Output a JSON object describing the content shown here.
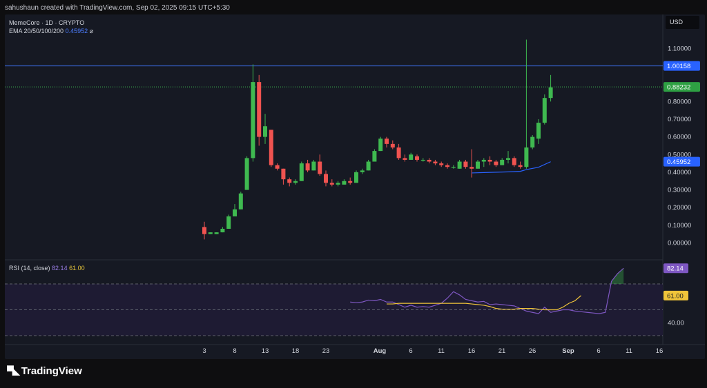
{
  "header": {
    "attribution": "sahushaun created with TradingView.com, Sep 02, 2025 09:15 UTC+5:30"
  },
  "legend": {
    "symbol": "MemeCore · 1D · CRYPTO",
    "ema_label": "EMA 20/50/100/200",
    "ema_value": "0.45952",
    "ema_suffix": "⌀",
    "rsi_label": "RSI (14, close)",
    "rsi_value1": "82.14",
    "rsi_value2": "61.00"
  },
  "currency": "USD",
  "brand": {
    "name": "TradingView",
    "logo_icon": "tradingview-logo-icon"
  },
  "colors": {
    "up": "#3fb950",
    "down": "#f05350",
    "ema": "#2962ff",
    "rsi": "#7e57c2",
    "rsi_ma": "#f0c43a",
    "resistance": "#3b6ee8",
    "current": "#3fb950"
  },
  "chart_data": [
    {
      "type": "candlestick",
      "title": "",
      "y_ticks": [
        "0.00000",
        "0.10000",
        "0.20000",
        "0.30000",
        "0.40000",
        "0.50000",
        "0.60000",
        "0.70000",
        "0.80000",
        "1.10000"
      ],
      "ylim": [
        -0.02,
        1.2
      ],
      "x_ticks": [
        "3",
        "8",
        "13",
        "18",
        "23",
        "Aug",
        "6",
        "11",
        "16",
        "21",
        "26",
        "Sep",
        "6",
        "11",
        "16"
      ],
      "price_labels": {
        "resistance": "1.00158",
        "current": "0.88232",
        "ema": "0.45952"
      },
      "candles": [
        {
          "o": 0.09,
          "h": 0.12,
          "l": 0.02,
          "c": 0.05
        },
        {
          "o": 0.05,
          "h": 0.06,
          "l": 0.05,
          "c": 0.06
        },
        {
          "o": 0.05,
          "h": 0.06,
          "l": 0.05,
          "c": 0.06
        },
        {
          "o": 0.06,
          "h": 0.09,
          "l": 0.06,
          "c": 0.08
        },
        {
          "o": 0.08,
          "h": 0.16,
          "l": 0.08,
          "c": 0.15
        },
        {
          "o": 0.15,
          "h": 0.22,
          "l": 0.15,
          "c": 0.19
        },
        {
          "o": 0.19,
          "h": 0.29,
          "l": 0.19,
          "c": 0.28
        },
        {
          "o": 0.3,
          "h": 0.49,
          "l": 0.3,
          "c": 0.48
        },
        {
          "o": 0.48,
          "h": 1.01,
          "l": 0.46,
          "c": 0.91
        },
        {
          "o": 0.91,
          "h": 0.95,
          "l": 0.55,
          "c": 0.6
        },
        {
          "o": 0.6,
          "h": 0.73,
          "l": 0.56,
          "c": 0.66
        },
        {
          "o": 0.64,
          "h": 0.64,
          "l": 0.43,
          "c": 0.44
        },
        {
          "o": 0.44,
          "h": 0.45,
          "l": 0.41,
          "c": 0.42
        },
        {
          "o": 0.42,
          "h": 0.42,
          "l": 0.33,
          "c": 0.36
        },
        {
          "o": 0.36,
          "h": 0.37,
          "l": 0.32,
          "c": 0.34
        },
        {
          "o": 0.34,
          "h": 0.36,
          "l": 0.33,
          "c": 0.35
        },
        {
          "o": 0.35,
          "h": 0.46,
          "l": 0.35,
          "c": 0.45
        },
        {
          "o": 0.45,
          "h": 0.47,
          "l": 0.4,
          "c": 0.41
        },
        {
          "o": 0.41,
          "h": 0.47,
          "l": 0.41,
          "c": 0.46
        },
        {
          "o": 0.46,
          "h": 0.5,
          "l": 0.38,
          "c": 0.39
        },
        {
          "o": 0.39,
          "h": 0.41,
          "l": 0.32,
          "c": 0.34
        },
        {
          "o": 0.34,
          "h": 0.36,
          "l": 0.32,
          "c": 0.33
        },
        {
          "o": 0.33,
          "h": 0.35,
          "l": 0.32,
          "c": 0.34
        },
        {
          "o": 0.33,
          "h": 0.36,
          "l": 0.33,
          "c": 0.35
        },
        {
          "o": 0.35,
          "h": 0.37,
          "l": 0.33,
          "c": 0.34
        },
        {
          "o": 0.34,
          "h": 0.41,
          "l": 0.34,
          "c": 0.4
        },
        {
          "o": 0.4,
          "h": 0.42,
          "l": 0.39,
          "c": 0.41
        },
        {
          "o": 0.41,
          "h": 0.47,
          "l": 0.41,
          "c": 0.46
        },
        {
          "o": 0.46,
          "h": 0.53,
          "l": 0.46,
          "c": 0.52
        },
        {
          "o": 0.52,
          "h": 0.6,
          "l": 0.52,
          "c": 0.59
        },
        {
          "o": 0.59,
          "h": 0.6,
          "l": 0.54,
          "c": 0.56
        },
        {
          "o": 0.56,
          "h": 0.58,
          "l": 0.53,
          "c": 0.54
        },
        {
          "o": 0.54,
          "h": 0.56,
          "l": 0.47,
          "c": 0.48
        },
        {
          "o": 0.48,
          "h": 0.5,
          "l": 0.46,
          "c": 0.47
        },
        {
          "o": 0.47,
          "h": 0.51,
          "l": 0.47,
          "c": 0.5
        },
        {
          "o": 0.49,
          "h": 0.5,
          "l": 0.46,
          "c": 0.47
        },
        {
          "o": 0.47,
          "h": 0.48,
          "l": 0.46,
          "c": 0.47
        },
        {
          "o": 0.47,
          "h": 0.48,
          "l": 0.45,
          "c": 0.46
        },
        {
          "o": 0.46,
          "h": 0.47,
          "l": 0.44,
          "c": 0.45
        },
        {
          "o": 0.45,
          "h": 0.46,
          "l": 0.43,
          "c": 0.44
        },
        {
          "o": 0.44,
          "h": 0.45,
          "l": 0.42,
          "c": 0.43
        },
        {
          "o": 0.43,
          "h": 0.44,
          "l": 0.42,
          "c": 0.43
        },
        {
          "o": 0.42,
          "h": 0.47,
          "l": 0.42,
          "c": 0.46
        },
        {
          "o": 0.46,
          "h": 0.47,
          "l": 0.42,
          "c": 0.43
        },
        {
          "o": 0.43,
          "h": 0.53,
          "l": 0.37,
          "c": 0.42
        },
        {
          "o": 0.42,
          "h": 0.47,
          "l": 0.42,
          "c": 0.46
        },
        {
          "o": 0.46,
          "h": 0.48,
          "l": 0.43,
          "c": 0.47
        },
        {
          "o": 0.47,
          "h": 0.49,
          "l": 0.44,
          "c": 0.46
        },
        {
          "o": 0.46,
          "h": 0.47,
          "l": 0.43,
          "c": 0.44
        },
        {
          "o": 0.44,
          "h": 0.48,
          "l": 0.44,
          "c": 0.47
        },
        {
          "o": 0.47,
          "h": 0.52,
          "l": 0.45,
          "c": 0.48
        },
        {
          "o": 0.48,
          "h": 0.49,
          "l": 0.43,
          "c": 0.44
        },
        {
          "o": 0.44,
          "h": 0.46,
          "l": 0.42,
          "c": 0.43
        },
        {
          "o": 0.43,
          "h": 1.15,
          "l": 0.42,
          "c": 0.54
        },
        {
          "o": 0.54,
          "h": 0.61,
          "l": 0.53,
          "c": 0.6
        },
        {
          "o": 0.59,
          "h": 0.7,
          "l": 0.56,
          "c": 0.68
        },
        {
          "o": 0.68,
          "h": 0.84,
          "l": 0.67,
          "c": 0.82
        },
        {
          "o": 0.82,
          "h": 0.95,
          "l": 0.8,
          "c": 0.88
        }
      ],
      "ema": [
        {
          "i": 44,
          "v": 0.396
        },
        {
          "i": 47,
          "v": 0.399
        },
        {
          "i": 50,
          "v": 0.402
        },
        {
          "i": 52,
          "v": 0.405
        },
        {
          "i": 53,
          "v": 0.415
        },
        {
          "i": 55,
          "v": 0.428
        },
        {
          "i": 57,
          "v": 0.45952
        }
      ]
    },
    {
      "type": "line",
      "title": "",
      "y_ticks": [
        "40.00"
      ],
      "levels": [
        70,
        50,
        30
      ],
      "ylim": [
        30,
        82
      ],
      "series": [
        {
          "name": "RSI",
          "start": 24,
          "values": [
            56,
            55.5,
            56,
            57.5,
            57,
            58,
            56,
            56,
            54,
            52,
            53.5,
            52,
            52.5,
            52,
            53.5,
            55,
            59,
            64,
            61.5,
            58,
            57,
            56,
            56.5,
            54,
            54.5,
            54,
            53.5,
            53,
            51,
            49,
            48,
            47,
            52,
            48,
            49,
            50,
            50,
            49,
            48.5,
            48,
            47.5,
            47,
            48,
            72,
            78,
            82.14
          ]
        },
        {
          "name": "MA",
          "start": 30,
          "values": [
            54.5,
            54.5,
            55,
            55,
            55,
            55,
            55,
            55,
            55,
            55,
            55,
            55,
            55,
            55,
            54.5,
            54,
            53.5,
            52.5,
            51,
            50.5,
            50.5,
            50.5,
            51,
            51,
            51,
            50.5,
            50,
            50,
            50,
            52,
            55,
            57,
            61
          ]
        }
      ]
    }
  ]
}
